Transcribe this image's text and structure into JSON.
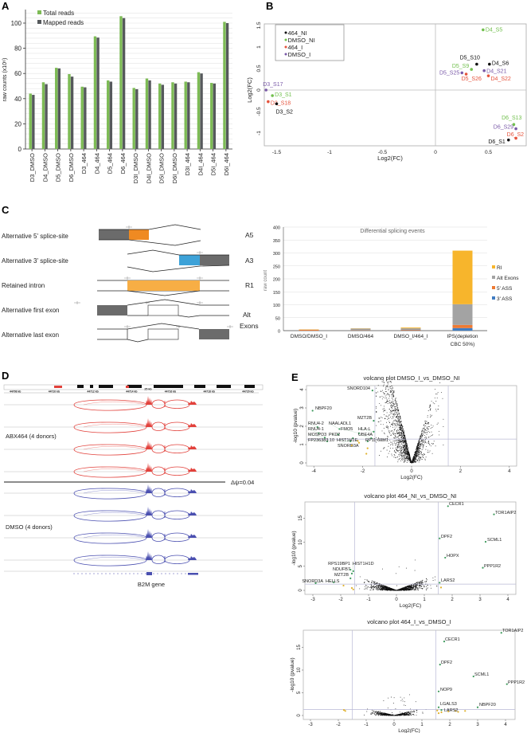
{
  "panels": {
    "A": "A",
    "B": "B",
    "C": "C",
    "D": "D",
    "E": "E"
  },
  "chart_data": [
    {
      "type": "bar",
      "title": "",
      "ylabel": "raw counts (x10⁶)",
      "xlabel": "",
      "categories": [
        "D3_DMSO",
        "D4_DMSO",
        "D5_DMSO",
        "D6_DMSO",
        "D3_464",
        "D4_464",
        "D5_464",
        "D6_464",
        "D3I_DMSO",
        "D4I_DMSO",
        "D5I_DMSO",
        "D6I_DMSO",
        "D3I_464",
        "D4I_464",
        "D5I_464",
        "D6I_464"
      ],
      "series": [
        {
          "name": "Total reads",
          "color": "#7dbb55",
          "values": [
            44,
            53,
            64.5,
            59.5,
            49.5,
            89.5,
            54.5,
            105.5,
            48.5,
            56,
            52,
            53,
            53.5,
            61,
            52.5,
            101
          ]
        },
        {
          "name": "Mapped reads",
          "color": "#56595c",
          "values": [
            43,
            51.5,
            64,
            57.5,
            49,
            88.5,
            53.5,
            104,
            47.5,
            54.5,
            51,
            52,
            53,
            60,
            52,
            100
          ]
        }
      ],
      "yticks": [
        0,
        20,
        40,
        60,
        80,
        100
      ],
      "ylim": [
        0,
        110
      ],
      "grid": true,
      "legend": "top-left"
    },
    {
      "type": "scatter",
      "xlabel": "Log2(FC)",
      "ylabel": "Log2(FC)",
      "xticks": [
        -1.5,
        -1,
        -0.5,
        0,
        0.5
      ],
      "yticks": [
        -1,
        -0.5,
        0,
        0.5,
        1,
        1.5
      ],
      "xlim": [
        -1.6,
        0.85
      ],
      "ylim": [
        -1.3,
        1.55
      ],
      "legend": "top-left",
      "groups": [
        {
          "name": "464_NI",
          "color": "#111111"
        },
        {
          "name": "DMSO_NI",
          "color": "#72c04e"
        },
        {
          "name": "464_I",
          "color": "#e5533c"
        },
        {
          "name": "DMSO_I",
          "color": "#7a5aa8"
        }
      ],
      "points": [
        {
          "label": "D4_S5",
          "group": 1,
          "x": 0.45,
          "y": 1.4
        },
        {
          "label": "D5_S10",
          "group": 0,
          "x": 0.39,
          "y": 0.6
        },
        {
          "label": "D4_S6",
          "group": 0,
          "x": 0.51,
          "y": 0.6
        },
        {
          "label": "D5_S9",
          "group": 1,
          "x": 0.34,
          "y": 0.48
        },
        {
          "label": "D4_S21",
          "group": 3,
          "x": 0.46,
          "y": 0.45
        },
        {
          "label": "D5_S25",
          "group": 3,
          "x": 0.25,
          "y": 0.4
        },
        {
          "label": "D5_S26",
          "group": 2,
          "x": 0.29,
          "y": 0.37
        },
        {
          "label": "D4_S22",
          "group": 2,
          "x": 0.5,
          "y": 0.33
        },
        {
          "label": "D3_S17",
          "group": 3,
          "x": -1.6,
          "y": 0.0
        },
        {
          "label": "D3_S1",
          "group": 1,
          "x": -1.54,
          "y": -0.13
        },
        {
          "label": "D3_S18",
          "group": 2,
          "x": -1.58,
          "y": -0.27
        },
        {
          "label": "D3_S2",
          "group": 0,
          "x": -1.5,
          "y": -0.32
        },
        {
          "label": "D6_S13",
          "group": 1,
          "x": 0.74,
          "y": -0.8
        },
        {
          "label": "D6_S29",
          "group": 3,
          "x": 0.76,
          "y": -0.9
        },
        {
          "label": "D6_S2",
          "group": 2,
          "x": 0.76,
          "y": -1.12
        },
        {
          "label": "D6_S1",
          "group": 0,
          "x": 0.69,
          "y": -1.16
        }
      ]
    },
    {
      "type": "bar",
      "stacked": true,
      "title": "Differential splicing events",
      "ylabel": "raw count",
      "categories": [
        [
          "DMSO/DMSO_I"
        ],
        [
          "DMSO/464"
        ],
        [
          "DMSO_I/464_I"
        ],
        [
          "IPS(depletion",
          "CBC 50%)"
        ]
      ],
      "yticks": [
        0,
        50,
        100,
        150,
        200,
        250,
        300,
        350,
        400
      ],
      "ylim": [
        0,
        400
      ],
      "legend": "right",
      "series": [
        {
          "name": "3' ASS",
          "color": "#3f7cc2",
          "values": [
            0,
            0,
            1,
            10
          ]
        },
        {
          "name": "5' ASS",
          "color": "#ee7a33",
          "values": [
            3,
            1,
            2,
            12
          ]
        },
        {
          "name": "Alt Exons",
          "color": "#a3a3a3",
          "values": [
            1,
            7,
            6,
            80
          ]
        },
        {
          "name": "RI",
          "color": "#f7b52c",
          "values": [
            1,
            1,
            3,
            207
          ]
        }
      ],
      "legend_order": [
        3,
        2,
        1,
        0
      ]
    },
    {
      "type": "scatter",
      "title": "volcano plot DMSO_I_vs_DMSO_NI",
      "xlabel": "Log2(FC)",
      "ylabel": "-log10 (pvalue)",
      "xticks": [
        -4,
        -2,
        0,
        2,
        4
      ],
      "yticks": [
        0,
        1,
        2,
        3,
        4
      ],
      "xlim": [
        -4.3,
        4.3
      ],
      "ylim": [
        -0.2,
        4.6
      ],
      "fc_threshold": 1.5,
      "p_threshold": 1.3,
      "genes": [
        {
          "label": "SNORD104",
          "x": -1.6,
          "y": 3.95
        },
        {
          "label": "NBPF20",
          "x": -4.05,
          "y": 2.85
        },
        {
          "label": "MZT2B",
          "x": -1.55,
          "y": 2.3
        },
        {
          "label": "RNU4-2",
          "x": -3.85,
          "y": 1.95
        },
        {
          "label": "NAALADL1",
          "x": -2.95,
          "y": 1.85
        },
        {
          "label": "RNU4-1",
          "x": -3.8,
          "y": 1.62
        },
        {
          "label": "PKD2",
          "x": -3.0,
          "y": 1.55
        },
        {
          "label": "FMO5",
          "x": -2.15,
          "y": 1.62
        },
        {
          "label": "HLA-L",
          "x": -1.55,
          "y": 1.7
        },
        {
          "label": "MOSPD3",
          "x": -3.55,
          "y": 1.38
        },
        {
          "label": "SNORD3A",
          "x": -2.4,
          "y": 1.35
        },
        {
          "label": "UBE4A",
          "x": -1.65,
          "y": 1.35
        },
        {
          "label": "FP236383.10",
          "x": -3.45,
          "y": 1.18
        },
        {
          "label": "HIST1H1E",
          "x": -2.5,
          "y": 1.18
        },
        {
          "label": "RP11-69M1",
          "x": -1.8,
          "y": 1.18
        }
      ],
      "nonsignificant_flagged": [
        [
          -2.45,
          0.95
        ],
        [
          -2.2,
          1.2
        ],
        [
          -1.8,
          0.8
        ],
        [
          -1.85,
          0.5
        ],
        [
          -2.15,
          1.1
        ]
      ]
    },
    {
      "type": "scatter",
      "title": "volcano plot 464_NI_vs_DMSO_NI",
      "xlabel": "Log2(FC)",
      "ylabel": "-log10 (pvalue)",
      "xticks": [
        -3,
        -2,
        -1,
        0,
        1,
        2,
        3,
        4
      ],
      "yticks": [
        0,
        5,
        10,
        15
      ],
      "xlim": [
        -3.2,
        4.3
      ],
      "ylim": [
        -0.8,
        18.5
      ],
      "fc_threshold": 1.5,
      "p_threshold": 1.3,
      "genes": [
        {
          "label": "CECR1",
          "x": 1.85,
          "y": 17.5
        },
        {
          "label": "TOR1AIP2",
          "x": 3.5,
          "y": 15.8
        },
        {
          "label": "DPF2",
          "x": 1.55,
          "y": 10.8
        },
        {
          "label": "SCML1",
          "x": 3.2,
          "y": 10.1
        },
        {
          "label": "HOPX",
          "x": 1.75,
          "y": 6.8
        },
        {
          "label": "PPP1R2",
          "x": 3.1,
          "y": 4.7
        },
        {
          "label": "LARS2",
          "x": 1.55,
          "y": 1.6
        },
        {
          "label": "RPS19BP1",
          "x": -1.65,
          "y": 4.3
        },
        {
          "label": "HIST1H1D",
          "x": -1.55,
          "y": 4.0
        },
        {
          "label": "NDUFB7",
          "x": -1.6,
          "y": 3.5
        },
        {
          "label": "MZT2B",
          "x": -1.65,
          "y": 2.5
        },
        {
          "label": "SNORD3A",
          "x": -2.9,
          "y": 1.5
        },
        {
          "label": "HELLS",
          "x": -2.25,
          "y": 1.7
        }
      ],
      "nonsignificant_flagged": [
        [
          -1.9,
          1.0
        ],
        [
          -1.6,
          0.5
        ],
        [
          -1.55,
          0.2
        ],
        [
          1.6,
          0.6
        ]
      ]
    },
    {
      "type": "scatter",
      "title": "volcano plot 464_I_vs_DMSO_I",
      "xlabel": "Log2(FC)",
      "ylabel": "-log10 (pvalue)",
      "xticks": [
        -3,
        -2,
        -1,
        0,
        1,
        2,
        3,
        4
      ],
      "yticks": [
        0,
        5,
        10,
        15
      ],
      "xlim": [
        -3.2,
        4.3
      ],
      "ylim": [
        -0.8,
        19.5
      ],
      "fc_threshold": 1.5,
      "p_threshold": 1.3,
      "genes": [
        {
          "label": "TOR1AIP2",
          "x": 3.85,
          "y": 18.2
        },
        {
          "label": "CECR1",
          "x": 1.8,
          "y": 16.3
        },
        {
          "label": "DPF2",
          "x": 1.65,
          "y": 11.2
        },
        {
          "label": "SCML1",
          "x": 2.85,
          "y": 8.6
        },
        {
          "label": "PPP1R2",
          "x": 4.05,
          "y": 6.9
        },
        {
          "label": "NOP9",
          "x": 1.6,
          "y": 5.3
        },
        {
          "label": "LGALS3",
          "x": 1.6,
          "y": 1.8
        },
        {
          "label": "LARS2",
          "x": 1.7,
          "y": 1.2
        },
        {
          "label": "NBPF20",
          "x": 3.0,
          "y": 1.8
        }
      ],
      "nonsignificant_flagged": [
        [
          -1.8,
          1.2
        ],
        [
          -1.75,
          1.0
        ],
        [
          1.55,
          1.1
        ],
        [
          1.7,
          0.7
        ],
        [
          1.95,
          0.9
        ],
        [
          2.2,
          1.0
        ],
        [
          2.3,
          0.8
        ],
        [
          2.55,
          1.0
        ],
        [
          1.6,
          0.5
        ]
      ]
    }
  ],
  "splicing_schematic": {
    "rows": [
      {
        "label": "Alternative 5' splice-site",
        "code": "A5"
      },
      {
        "label": "Alternative 3' splice-site",
        "code": "A3"
      },
      {
        "label": "Retained intron",
        "code": "R1"
      },
      {
        "label": "Alternative first exon",
        "code": "Alt"
      },
      {
        "label": "Alternative last exon",
        "code": "Exons"
      }
    ],
    "colors": {
      "exon": "#6b6b6b",
      "alt5": "#ef8a22",
      "alt3": "#3da2d8",
      "intron": "#f7ae45"
    }
  },
  "sashimi": {
    "ruler_labels": [
      "44708 kb",
      "44710 kb",
      "44712 kb",
      "44714 kb",
      "44716 kb",
      "44718 kb",
      "44720 kb"
    ],
    "scale_label": "25 kb",
    "group_labels": [
      "ABX464 (4 donors)",
      "DMSO (4 donors)"
    ],
    "delta_psi": "Δψ=0.04",
    "gene": "B2M gene",
    "colors": {
      "abx464": "#e2413b",
      "dmso": "#4a4fb0"
    }
  }
}
